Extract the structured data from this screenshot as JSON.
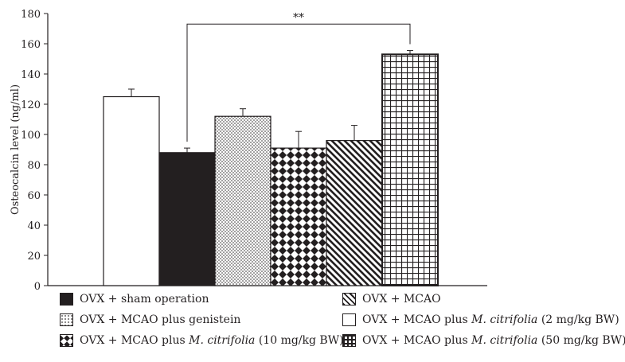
{
  "chart_data": {
    "type": "bar",
    "ylabel": "Osteocalcin level (ng/ml)",
    "ylim": [
      0,
      180
    ],
    "yticks": [
      0,
      20,
      40,
      60,
      80,
      100,
      120,
      140,
      160,
      180
    ],
    "grid": false,
    "legend_position": "bottom",
    "bars": [
      {
        "name": "OVX + MCAO plus M. citrifolia (2 mg/kg BW)",
        "value": 125,
        "error": 5,
        "pattern": "white"
      },
      {
        "name": "OVX + sham operation",
        "value": 88,
        "error": 3,
        "pattern": "black"
      },
      {
        "name": "OVX + MCAO plus genistein",
        "value": 112,
        "error": 5,
        "pattern": "dots"
      },
      {
        "name": "OVX + MCAO plus M. citrifolia (10 mg/kg BW)",
        "value": 91,
        "error": 11,
        "pattern": "diamonds"
      },
      {
        "name": "OVX + MCAO",
        "value": 96,
        "error": 10,
        "pattern": "diagonal"
      },
      {
        "name": "OVX + MCAO plus M. citrifolia (50 mg/kg BW)",
        "value": 153,
        "error": 2.5,
        "pattern": "grid"
      }
    ],
    "significance": {
      "label": "**",
      "from_bar": 1,
      "to_bar": 5,
      "y_value": 173
    }
  },
  "legend": [
    {
      "pattern": "black",
      "prefix": "OVX + sham operation",
      "italic": "",
      "suffix": ""
    },
    {
      "pattern": "diagonal",
      "prefix": "OVX + MCAO",
      "italic": "",
      "suffix": ""
    },
    {
      "pattern": "dots",
      "prefix": "OVX + MCAO plus genistein",
      "italic": "",
      "suffix": ""
    },
    {
      "pattern": "white",
      "prefix": "OVX + MCAO plus ",
      "italic": "M. citrifolia",
      "suffix": " (2 mg/kg BW)"
    },
    {
      "pattern": "diamonds",
      "prefix": "OVX + MCAO plus ",
      "italic": "M. citrifolia",
      "suffix": " (10 mg/kg BW)"
    },
    {
      "pattern": "grid",
      "prefix": "OVX + MCAO plus ",
      "italic": "M. citrifolia",
      "suffix": " (50 mg/kg BW)"
    }
  ]
}
